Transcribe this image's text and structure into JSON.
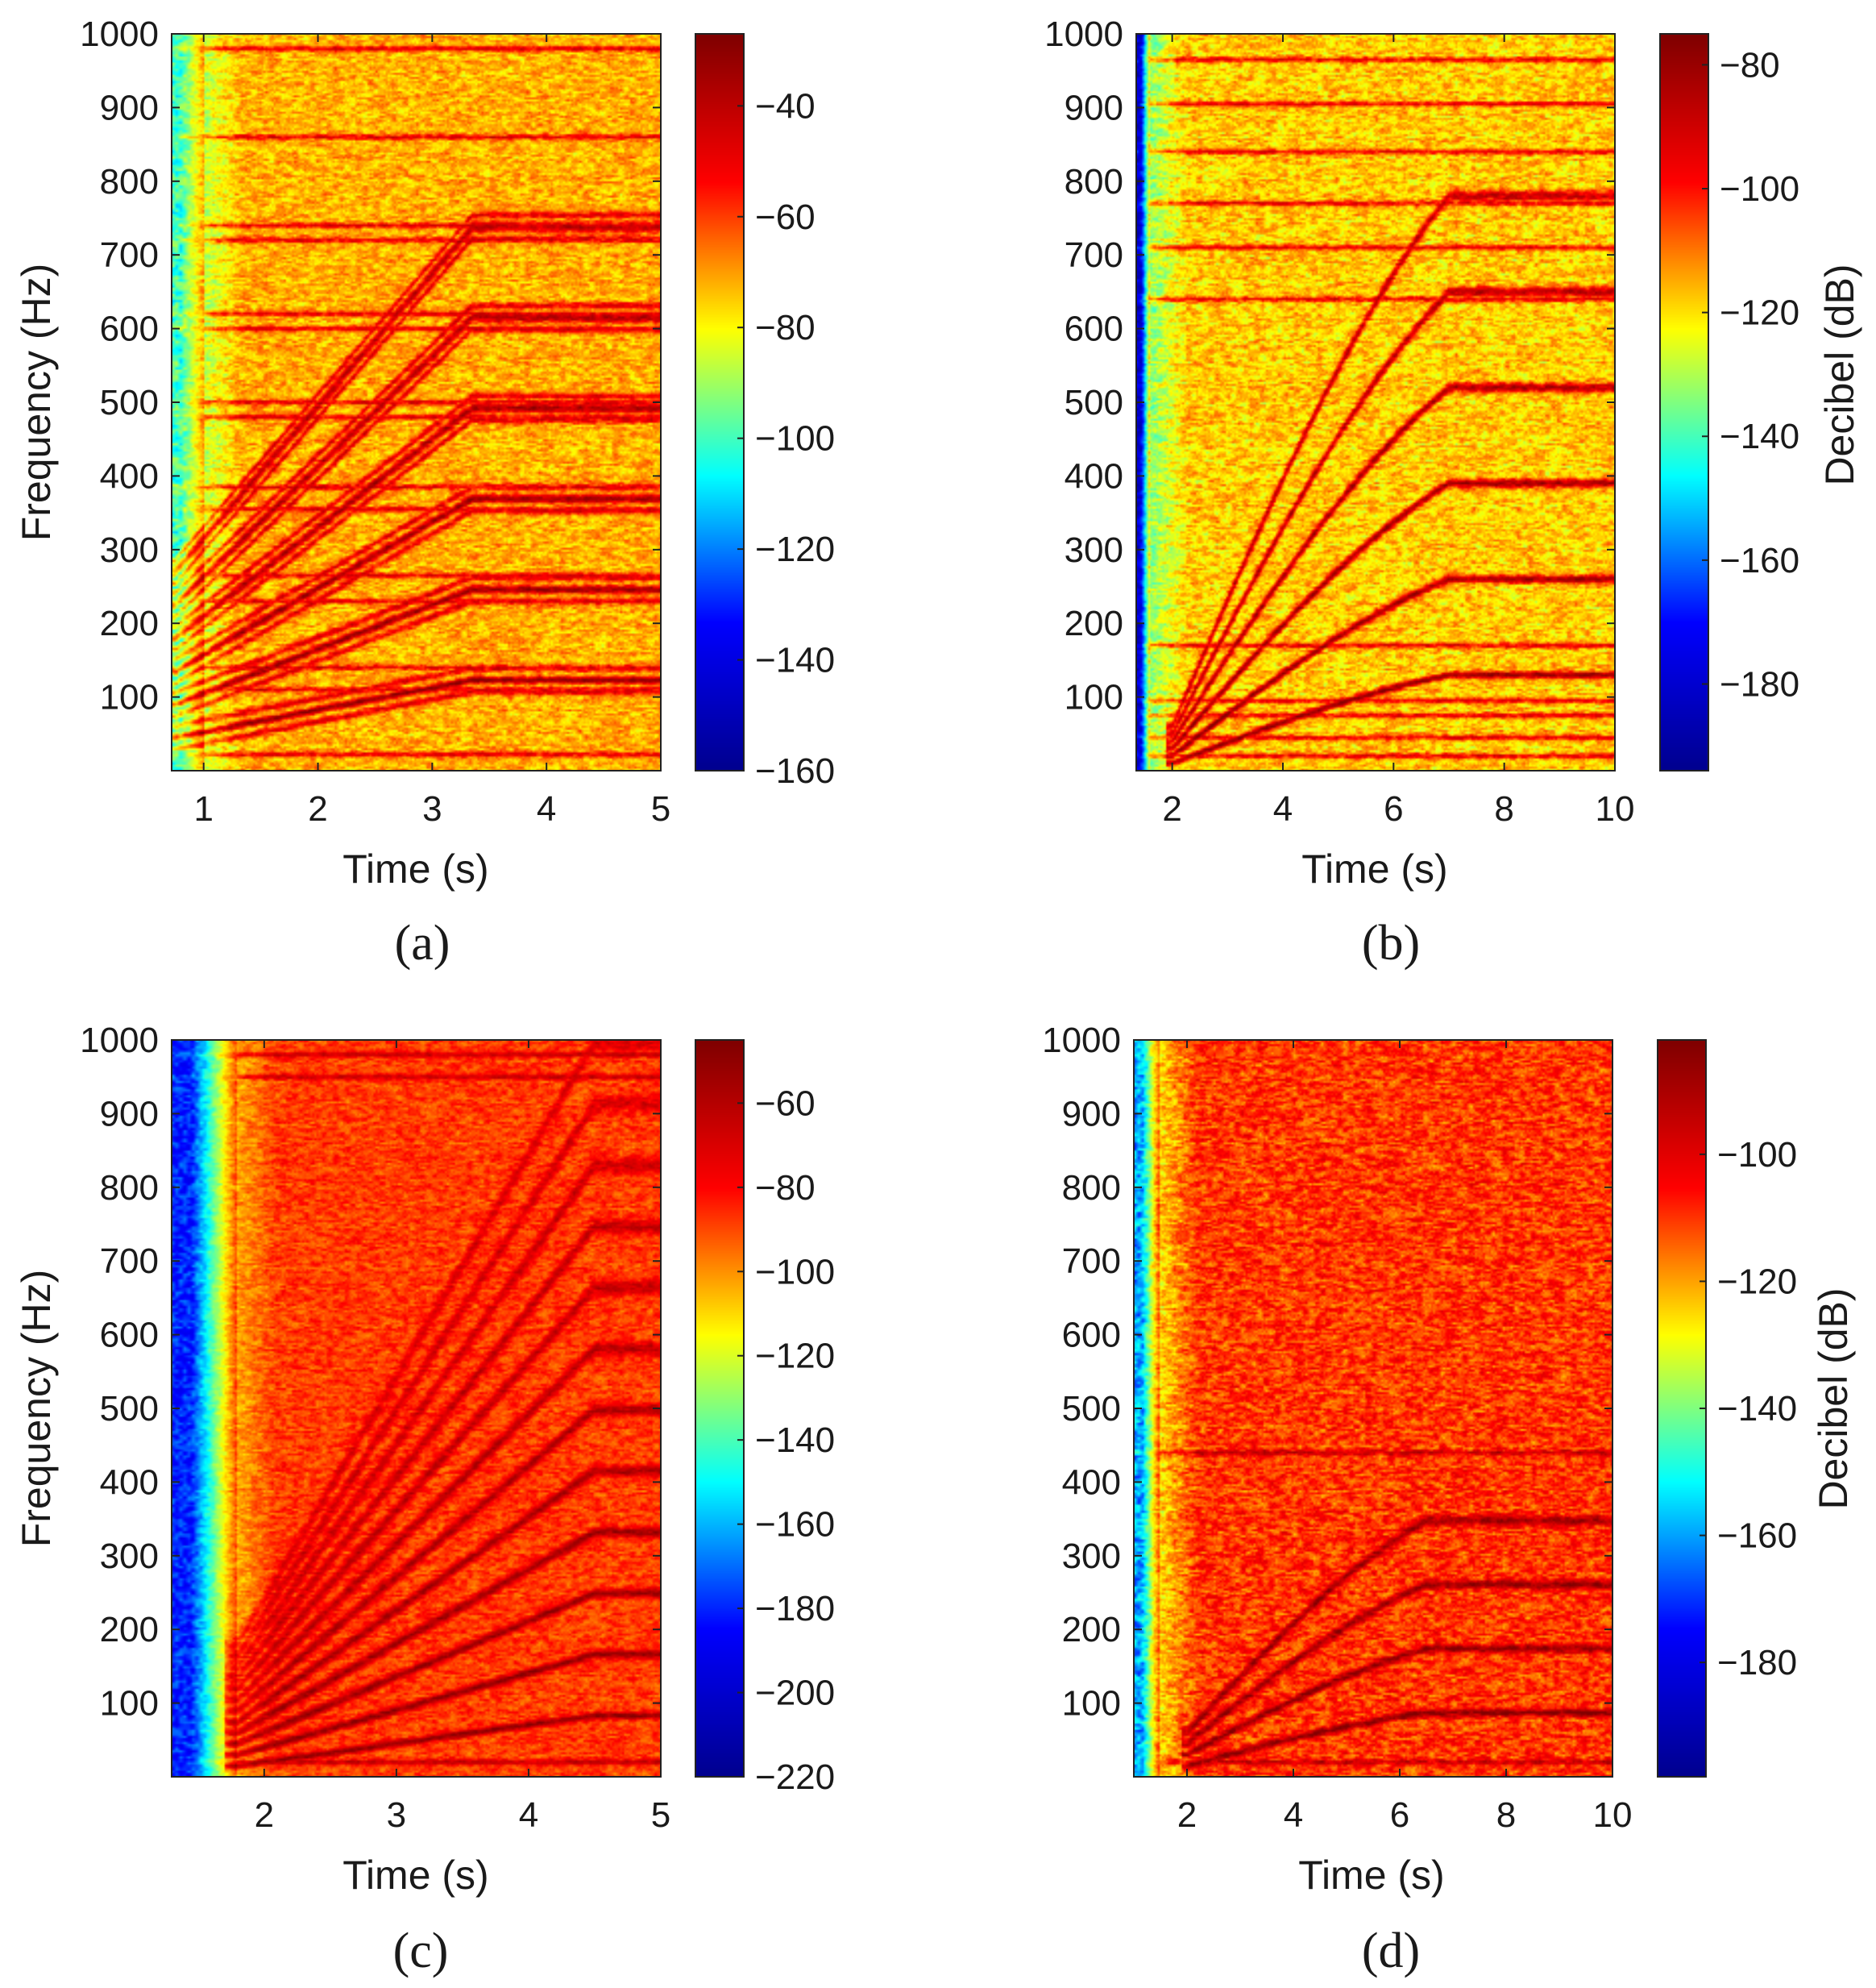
{
  "figure": {
    "description_free": true
  },
  "colormap": {
    "name": "jet",
    "stops": [
      "#00008f",
      "#0000ff",
      "#00ffff",
      "#ffff00",
      "#ff0000",
      "#800000"
    ]
  },
  "chart_data": [
    {
      "type": "heatmap",
      "panel_label": "(a)",
      "xlabel": "Time (s)",
      "ylabel": "Frequency (Hz)",
      "colorbar_label": "",
      "xlim": [
        0.72,
        5.0
      ],
      "ylim": [
        0,
        1000
      ],
      "xticks": [
        1,
        2,
        3,
        4,
        5
      ],
      "xtick_labels": [
        "1",
        "2",
        "3",
        "4",
        "5"
      ],
      "yticks": [
        100,
        200,
        300,
        400,
        500,
        600,
        700,
        800,
        900,
        1000
      ],
      "ytick_labels": [
        "100",
        "200",
        "300",
        "400",
        "500",
        "600",
        "700",
        "800",
        "900",
        "1000"
      ],
      "clim": [
        -160,
        -27
      ],
      "cticks": [
        -40,
        -60,
        -80,
        -100,
        -120,
        -140,
        -160
      ],
      "ctick_labels": [
        "−40",
        "−60",
        "−80",
        "−100",
        "−120",
        "−140",
        "−160"
      ],
      "background_level": -72,
      "low_region": {
        "t_end": 1.0,
        "level": -100
      },
      "harmonics": {
        "f_start": 45,
        "f_end": 123,
        "t_start": 0.75,
        "t_end": 3.35,
        "orders": [
          1,
          2,
          3,
          4,
          5,
          6
        ],
        "sidebands": true
      },
      "constant_lines": [
        22,
        110,
        140,
        230,
        265,
        355,
        385,
        480,
        500,
        600,
        620,
        720,
        740,
        860,
        980
      ]
    },
    {
      "type": "heatmap",
      "panel_label": "(b)",
      "xlabel": "Time (s)",
      "ylabel": "",
      "colorbar_label": "Decibel (dB)",
      "xlim": [
        1.35,
        10.0
      ],
      "ylim": [
        0,
        1000
      ],
      "xticks": [
        2,
        4,
        6,
        8,
        10
      ],
      "xtick_labels": [
        "2",
        "4",
        "6",
        "8",
        "10"
      ],
      "yticks": [
        100,
        200,
        300,
        400,
        500,
        600,
        700,
        800,
        900,
        1000
      ],
      "ytick_labels": [
        "100",
        "200",
        "300",
        "400",
        "500",
        "600",
        "700",
        "800",
        "900",
        "1000"
      ],
      "clim": [
        -194,
        -75
      ],
      "cticks": [
        -80,
        -100,
        -120,
        -140,
        -160,
        -180
      ],
      "ctick_labels": [
        "−80",
        "−100",
        "−120",
        "−140",
        "−160",
        "−180"
      ],
      "background_level": -118,
      "low_region": {
        "t_end": 1.6,
        "level": -180
      },
      "harmonics": {
        "f_start": 10,
        "f_end": 130,
        "t_start": 2.0,
        "t_end": 7.0,
        "orders": [
          1,
          2,
          3,
          4,
          5,
          6
        ],
        "sidebands": false
      },
      "constant_lines": [
        20,
        45,
        75,
        95,
        170,
        640,
        710,
        770,
        840,
        905,
        965
      ]
    },
    {
      "type": "heatmap",
      "panel_label": "(c)",
      "xlabel": "Time (s)",
      "ylabel": "Frequency (Hz)",
      "colorbar_label": "",
      "xlim": [
        1.3,
        5.0
      ],
      "ylim": [
        0,
        1000
      ],
      "xticks": [
        2,
        3,
        4,
        5
      ],
      "xtick_labels": [
        "2",
        "3",
        "4",
        "5"
      ],
      "yticks": [
        100,
        200,
        300,
        400,
        500,
        600,
        700,
        800,
        900,
        1000
      ],
      "ytick_labels": [
        "100",
        "200",
        "300",
        "400",
        "500",
        "600",
        "700",
        "800",
        "900",
        "1000"
      ],
      "clim": [
        -220,
        -45
      ],
      "cticks": [
        -60,
        -80,
        -100,
        -120,
        -140,
        -160,
        -180,
        -200,
        -220
      ],
      "ctick_labels": [
        "−60",
        "−80",
        "−100",
        "−120",
        "−140",
        "−160",
        "−180",
        "−200",
        "−220"
      ],
      "background_level": -88,
      "low_region": {
        "t_end": 1.8,
        "level": -180
      },
      "harmonics": {
        "f_start": 15,
        "f_end": 83,
        "t_start": 1.8,
        "t_end": 4.5,
        "orders": [
          1,
          2,
          3,
          4,
          5,
          6,
          7,
          8,
          9,
          10,
          11,
          12
        ],
        "sidebands": false
      },
      "constant_lines": [
        20,
        950,
        980
      ]
    },
    {
      "type": "heatmap",
      "panel_label": "(d)",
      "xlabel": "Time (s)",
      "ylabel": "",
      "colorbar_label": "Decibel (dB)",
      "xlim": [
        1.0,
        10.0
      ],
      "ylim": [
        0,
        1000
      ],
      "xticks": [
        2,
        4,
        6,
        8,
        10
      ],
      "xtick_labels": [
        "2",
        "4",
        "6",
        "8",
        "10"
      ],
      "yticks": [
        100,
        200,
        300,
        400,
        500,
        600,
        700,
        800,
        900,
        1000
      ],
      "ytick_labels": [
        "100",
        "200",
        "300",
        "400",
        "500",
        "600",
        "700",
        "800",
        "900",
        "1000"
      ],
      "clim": [
        -198,
        -82
      ],
      "cticks": [
        -100,
        -120,
        -140,
        -160,
        -180
      ],
      "ctick_labels": [
        "−100",
        "−120",
        "−140",
        "−160",
        "−180"
      ],
      "background_level": -110,
      "low_region": {
        "t_end": 1.5,
        "level": -160
      },
      "harmonics": {
        "f_start": 15,
        "f_end": 87,
        "t_start": 2.0,
        "t_end": 6.5,
        "orders": [
          1,
          2,
          3,
          4
        ],
        "sidebands": false
      },
      "constant_lines": [
        20,
        440
      ]
    }
  ]
}
